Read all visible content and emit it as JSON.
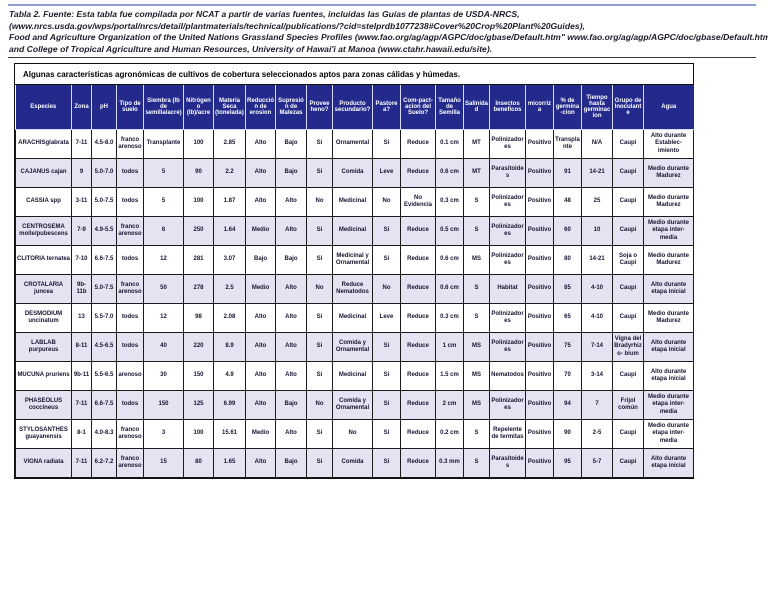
{
  "note": {
    "lines": [
      "Tabla 2. Fuente: Esta tabla fue compilada por NCAT a partir de varias fuentes, incluidas las Guías de plantas de USDA-NRCS,",
      "(www.nrcs.usda.gov/wps/portal/nrcs/detail/plantmaterials/technical/publications/?cid=stelprdb1077238#Cover%20Crop%20Plant%20Guides),",
      "Food and Agriculture Organization of the United Nations Grassland Species Profiles (www.fao.org/ag/agp/AGPC/doc/gbase/Default.htm\" www.fao.org/ag/agp/AGPC/doc/gbase/Default.htm),",
      "and College of Tropical Agriculture and Human Resources, University of Hawai'i at Manoa (www.ctahr.hawaii.edu/site)."
    ]
  },
  "table": {
    "title": "Algunas características agronómicas de cultivos de cobertura seleccionados aptos para zonas cálidas y húmedas.",
    "columns": [
      "Especies",
      "Zona",
      "pH",
      "Tipo de suelo",
      "Siembra (lb de semilla/acre)",
      "Nitrógeno (lb)/acre",
      "Materia Seca (tonelada)",
      "Reducción de erosion",
      "Supresión de Malezas",
      "Provee heno?",
      "Producto secundario?",
      "Pastorea?",
      "Com-pact-acion del Suelo?",
      "Tamaño de Semilla",
      "Salinidad",
      "Insectos beneficos",
      "micorriza",
      "% de germina-cion",
      "Tiempo hasta germinacion",
      "Grupo de Inoculante",
      "Agua"
    ],
    "rows": [
      [
        "ARACHISglabrata",
        "7-11",
        "4.5-8.0",
        "franco arenoso",
        "Transplante",
        "100",
        "2.85",
        "Alto",
        "Bajo",
        "Si",
        "Ornamental",
        "Si",
        "Reduce",
        "0.1 cm",
        "MT",
        "Polinizadores",
        "Positivo",
        "Transplante",
        "N/A",
        "Caupi",
        "Alto durante Establec- imiento"
      ],
      [
        "CAJANUS cajan",
        "9",
        "5.0-7.0",
        "todos",
        "5",
        "90",
        "2.2",
        "Alto",
        "Bajo",
        "Si",
        "Comida",
        "Leve",
        "Reduce",
        "0.6 cm",
        "MT",
        "Parasitoides",
        "Positivo",
        "91",
        "14-21",
        "Caupi",
        "Medio durante Madurez"
      ],
      [
        "CASSIA spp",
        "3-11",
        "5.0-7.5",
        "todos",
        "5",
        "100",
        "1.87",
        "Alto",
        "Alto",
        "No",
        "Medicinal",
        "No",
        "No Evidencia",
        "0.3 cm",
        "S",
        "Polinizadores",
        "Positivo",
        "48",
        "25",
        "Caupi",
        "Medio durante Madurez"
      ],
      [
        "CENTROSEMA molle/pubescens",
        "7-9",
        "4.9-5.5",
        "franco arenoso",
        "6",
        "250",
        "1.64",
        "Medio",
        "Alto",
        "Si",
        "Medicinal",
        "Si",
        "Reduce",
        "0.5 cm",
        "S",
        "Polinizadores",
        "Positivo",
        "60",
        "10",
        "Caupi",
        "Medio durante etapa inter- media"
      ],
      [
        "CLITORIA ternatea",
        "7-10",
        "6.6-7.5",
        "todos",
        "12",
        "281",
        "3.07",
        "Bajo",
        "Bajo",
        "Si",
        "Medicinal y Ornamental",
        "Si",
        "Reduce",
        "0.6 cm",
        "MS",
        "Polinizadores",
        "Positivo",
        "80",
        "14-21",
        "Soja o Caupi",
        "Medio durante Madurez"
      ],
      [
        "CROTALARIA juncea",
        "9b-11b",
        "5.0-7.5",
        "franco arenoso",
        "50",
        "278",
        "2.5",
        "Medio",
        "Alto",
        "No",
        "Reduce Nematodos",
        "No",
        "Reduce",
        "0.6 cm",
        "S",
        "Habitat",
        "Positivo",
        "85",
        "4-10",
        "Caupi",
        "Alto durante etapa inicial"
      ],
      [
        "DESMODIUM uncinatum",
        "13",
        "5.5-7.0",
        "todos",
        "12",
        "98",
        "2.08",
        "Alto",
        "Alto",
        "Si",
        "Medicinal",
        "Leve",
        "Reduce",
        "0.3 cm",
        "S",
        "Polinizadores",
        "Positivo",
        "65",
        "4-10",
        "Caupi",
        "Medio durante Madurez"
      ],
      [
        "LABLAB purpureus",
        "8-11",
        "4.5-6.5",
        "todos",
        "40",
        "220",
        "8.9",
        "Alto",
        "Alto",
        "Si",
        "Comida y Ornamental",
        "Si",
        "Reduce",
        "1 cm",
        "MS",
        "Polinizadores",
        "Positivo",
        "75",
        "7-14",
        "Vigna del Bradyrhizo- bium",
        "Alto durante etapa inicial"
      ],
      [
        "MUCUNA pruriens",
        "9b-11",
        "5.5-6.5",
        "arenoso",
        "30",
        "150",
        "4.9",
        "Alto",
        "Alto",
        "Si",
        "Medicinal",
        "Si",
        "Reduce",
        "1.5 cm",
        "MS",
        "Nematodos",
        "Positivo",
        "70",
        "3-14",
        "Caupi",
        "Alto durante etapa inicial"
      ],
      [
        "PHASEOLUS coccineus",
        "7-11",
        "6.6-7.5",
        "todos",
        "150",
        "125",
        "6.99",
        "Alto",
        "Bajo",
        "No",
        "Comida y Ornamental",
        "Si",
        "Reduce",
        "2 cm",
        "MS",
        "Polinizadores",
        "Positivo",
        "94",
        "7",
        "Frijol común",
        "Medio durante etapa inter- media"
      ],
      [
        "STYLOSANTHES guayanensis",
        "8-1",
        "4.0-8.3",
        "franco arenoso",
        "3",
        "100",
        "15.61",
        "Medio",
        "Alto",
        "Si",
        "No",
        "Si",
        "Reduce",
        "0.2 cm",
        "S",
        "Repelente de termitas",
        "Positivo",
        "90",
        "2-5",
        "Caupi",
        "Medio durante etapa inter- media"
      ],
      [
        "VIGNA radiata",
        "7-11",
        "6.2-7.2",
        "franco arenoso",
        "15",
        "80",
        "1.65",
        "Alto",
        "Bajo",
        "Si",
        "Comida",
        "Si",
        "Reduce",
        "0.3 mm",
        "S",
        "Parasitoides",
        "Positivo",
        "95",
        "5-7",
        "Caupi",
        "Alto durante etapa inicial"
      ]
    ]
  },
  "colors": {
    "header_bg": "#232a8c",
    "row_alt": "#e5e3f2",
    "rule_blue": "#8d9fd4",
    "note_text": "#1c1b2a"
  }
}
